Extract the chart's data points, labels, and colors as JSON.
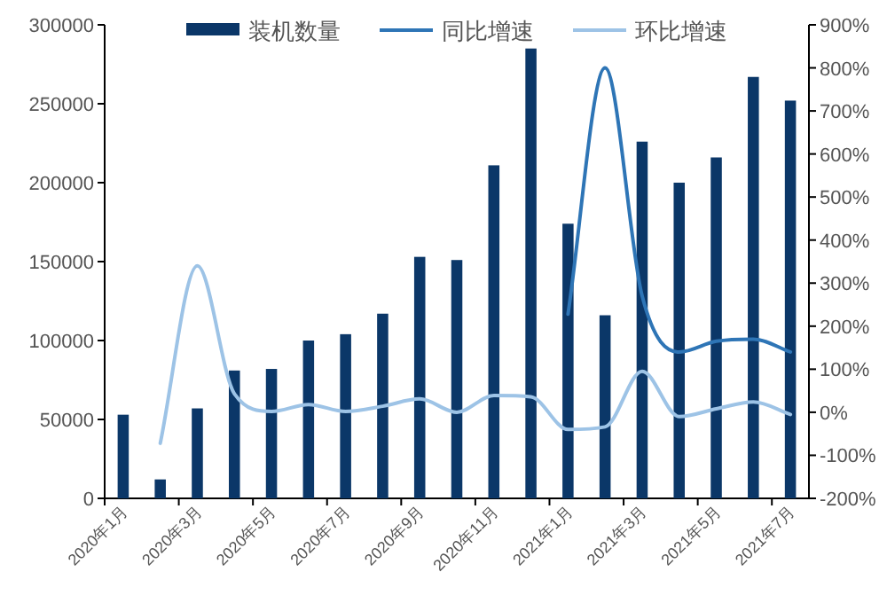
{
  "chart_data": {
    "type": "bar",
    "categories": [
      "2020年1月",
      null,
      "2020年3月",
      null,
      "2020年5月",
      null,
      "2020年7月",
      null,
      "2020年9月",
      null,
      "2020年11月",
      null,
      "2021年1月",
      null,
      "2021年3月",
      null,
      "2021年5月",
      null,
      "2021年7月"
    ],
    "series": [
      {
        "name": "装机数量",
        "color": "#0b3768",
        "values": [
          53000,
          12000,
          57000,
          81000,
          82000,
          100000,
          104000,
          117000,
          153000,
          151000,
          211000,
          285000,
          174000,
          116000,
          226000,
          200000,
          216000,
          267000,
          252000
        ]
      },
      {
        "name": "同比增速",
        "type": "line",
        "axis": "y2",
        "color": "#2e75b6",
        "values": [
          null,
          null,
          null,
          null,
          null,
          null,
          null,
          null,
          null,
          null,
          null,
          null,
          228,
          800,
          270,
          140,
          165,
          170,
          140
        ]
      },
      {
        "name": "环比增速",
        "type": "line",
        "axis": "y2",
        "color": "#9dc3e6",
        "values": [
          null,
          -72,
          340,
          43,
          2,
          18,
          2,
          14,
          31,
          0,
          39,
          36,
          -40,
          -34,
          95,
          -10,
          8,
          24,
          -5
        ]
      }
    ],
    "ylim": [
      0,
      300000
    ],
    "yticks": [
      0,
      50000,
      100000,
      150000,
      200000,
      250000,
      300000
    ],
    "y2lim": [
      -200,
      900
    ],
    "y2ticks": [
      {
        "value": -200,
        "label": "-200%"
      },
      {
        "value": -100,
        "label": "-100%"
      },
      {
        "value": 0,
        "label": "0%"
      },
      {
        "value": 100,
        "label": "100%"
      },
      {
        "value": 200,
        "label": "200%"
      },
      {
        "value": 300,
        "label": "300%"
      },
      {
        "value": 400,
        "label": "400%"
      },
      {
        "value": 500,
        "label": "500%"
      },
      {
        "value": 600,
        "label": "600%"
      },
      {
        "value": 700,
        "label": "700%"
      },
      {
        "value": 800,
        "label": "800%"
      },
      {
        "value": 900,
        "label": "900%"
      }
    ],
    "legend": "top",
    "grid": false,
    "marker": "none",
    "line_style": "solid"
  }
}
